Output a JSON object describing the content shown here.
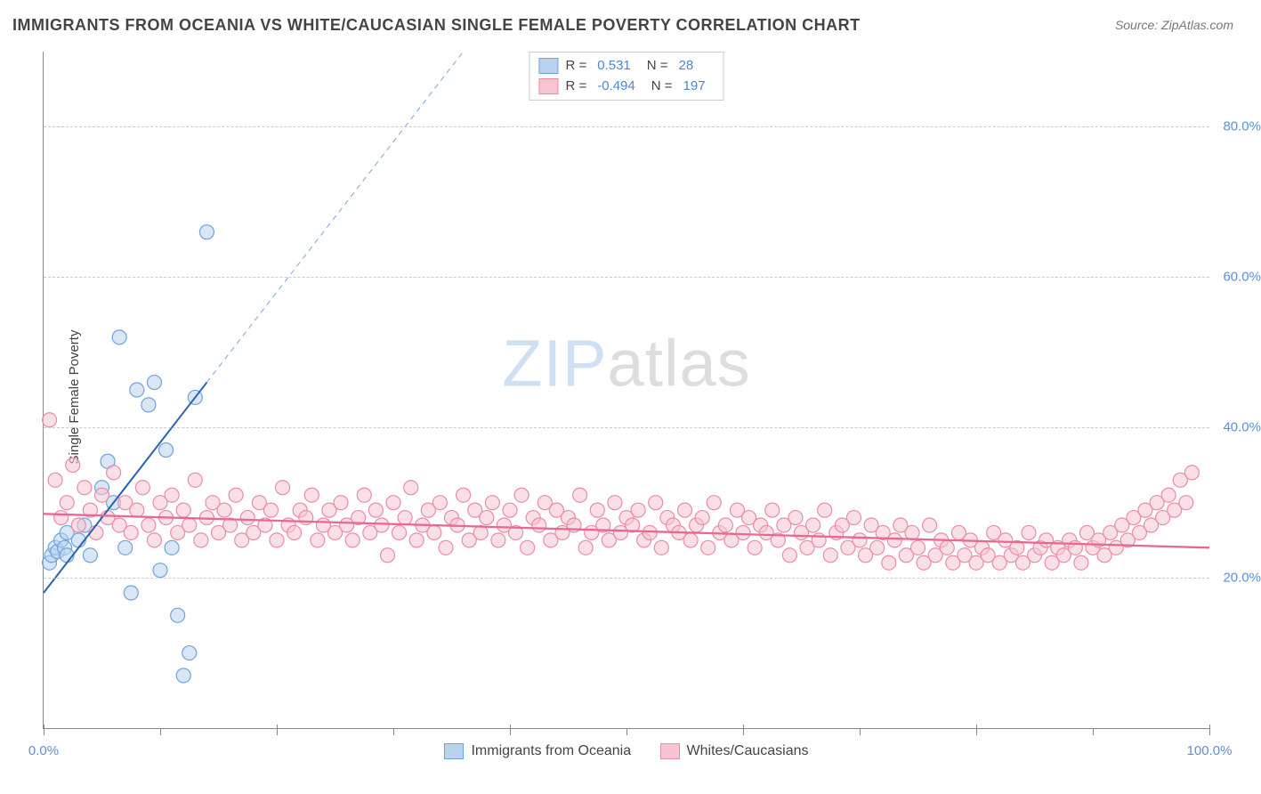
{
  "title": "IMMIGRANTS FROM OCEANIA VS WHITE/CAUCASIAN SINGLE FEMALE POVERTY CORRELATION CHART",
  "source": "Source: ZipAtlas.com",
  "ylabel": "Single Female Poverty",
  "watermark": {
    "part1": "ZIP",
    "part2": "atlas"
  },
  "chart": {
    "type": "scatter-with-regression",
    "x_range": [
      0,
      100
    ],
    "y_range": [
      0,
      90
    ],
    "y_ticks": [
      20,
      40,
      60,
      80
    ],
    "y_tick_labels": [
      "20.0%",
      "40.0%",
      "60.0%",
      "80.0%"
    ],
    "x_ticks": [
      0,
      20,
      40,
      60,
      80,
      100
    ],
    "x_tick_minor": [
      0,
      10,
      20,
      30,
      40,
      50,
      60,
      70,
      80,
      90,
      100
    ],
    "x_tick_labels_shown": {
      "0": "0.0%",
      "100": "100.0%"
    },
    "background_color": "#ffffff",
    "grid_color": "#cccccc",
    "axis_color": "#888888",
    "marker_radius": 8,
    "marker_stroke_width": 1.2,
    "series": [
      {
        "name": "Immigrants from Oceania",
        "legend_label": "Immigrants from Oceania",
        "fill": "#b9d2ee",
        "stroke": "#6fa3db",
        "fill_opacity": 0.55,
        "R": "0.531",
        "N": "28",
        "regression": {
          "solid": {
            "x1": 0,
            "y1": 18,
            "x2": 14,
            "y2": 46,
            "color": "#2862b5",
            "width": 2
          },
          "dashed": {
            "x1": 14,
            "y1": 46,
            "x2": 36,
            "y2": 90,
            "color": "#7ba6dc",
            "width": 1,
            "dash": "6 5"
          }
        },
        "points": [
          [
            0.5,
            22
          ],
          [
            0.7,
            23
          ],
          [
            1,
            24
          ],
          [
            1.2,
            23.5
          ],
          [
            1.5,
            25
          ],
          [
            1.8,
            24
          ],
          [
            2,
            26
          ],
          [
            2,
            23
          ],
          [
            3,
            25
          ],
          [
            3.5,
            27
          ],
          [
            4,
            23
          ],
          [
            5,
            32
          ],
          [
            5.5,
            35.5
          ],
          [
            6,
            30
          ],
          [
            6.5,
            52
          ],
          [
            7,
            24
          ],
          [
            7.5,
            18
          ],
          [
            8,
            45
          ],
          [
            9,
            43
          ],
          [
            9.5,
            46
          ],
          [
            10,
            21
          ],
          [
            10.5,
            37
          ],
          [
            11,
            24
          ],
          [
            11.5,
            15
          ],
          [
            12,
            7
          ],
          [
            12.5,
            10
          ],
          [
            13,
            44
          ],
          [
            14,
            66
          ]
        ]
      },
      {
        "name": "Whites/Caucasians",
        "legend_label": "Whites/Caucasians",
        "fill": "#f7c5d2",
        "stroke": "#ea8ca5",
        "fill_opacity": 0.55,
        "R": "-0.494",
        "N": "197",
        "regression": {
          "solid": {
            "x1": 0,
            "y1": 28.5,
            "x2": 100,
            "y2": 24,
            "color": "#e86893",
            "width": 2.3
          }
        },
        "points": [
          [
            0.5,
            41
          ],
          [
            1,
            33
          ],
          [
            1.5,
            28
          ],
          [
            2,
            30
          ],
          [
            2.5,
            35
          ],
          [
            3,
            27
          ],
          [
            3.5,
            32
          ],
          [
            4,
            29
          ],
          [
            4.5,
            26
          ],
          [
            5,
            31
          ],
          [
            5.5,
            28
          ],
          [
            6,
            34
          ],
          [
            6.5,
            27
          ],
          [
            7,
            30
          ],
          [
            7.5,
            26
          ],
          [
            8,
            29
          ],
          [
            8.5,
            32
          ],
          [
            9,
            27
          ],
          [
            9.5,
            25
          ],
          [
            10,
            30
          ],
          [
            10.5,
            28
          ],
          [
            11,
            31
          ],
          [
            11.5,
            26
          ],
          [
            12,
            29
          ],
          [
            12.5,
            27
          ],
          [
            13,
            33
          ],
          [
            13.5,
            25
          ],
          [
            14,
            28
          ],
          [
            14.5,
            30
          ],
          [
            15,
            26
          ],
          [
            15.5,
            29
          ],
          [
            16,
            27
          ],
          [
            16.5,
            31
          ],
          [
            17,
            25
          ],
          [
            17.5,
            28
          ],
          [
            18,
            26
          ],
          [
            18.5,
            30
          ],
          [
            19,
            27
          ],
          [
            19.5,
            29
          ],
          [
            20,
            25
          ],
          [
            20.5,
            32
          ],
          [
            21,
            27
          ],
          [
            21.5,
            26
          ],
          [
            22,
            29
          ],
          [
            22.5,
            28
          ],
          [
            23,
            31
          ],
          [
            23.5,
            25
          ],
          [
            24,
            27
          ],
          [
            24.5,
            29
          ],
          [
            25,
            26
          ],
          [
            25.5,
            30
          ],
          [
            26,
            27
          ],
          [
            26.5,
            25
          ],
          [
            27,
            28
          ],
          [
            27.5,
            31
          ],
          [
            28,
            26
          ],
          [
            28.5,
            29
          ],
          [
            29,
            27
          ],
          [
            29.5,
            23
          ],
          [
            30,
            30
          ],
          [
            30.5,
            26
          ],
          [
            31,
            28
          ],
          [
            31.5,
            32
          ],
          [
            32,
            25
          ],
          [
            32.5,
            27
          ],
          [
            33,
            29
          ],
          [
            33.5,
            26
          ],
          [
            34,
            30
          ],
          [
            34.5,
            24
          ],
          [
            35,
            28
          ],
          [
            35.5,
            27
          ],
          [
            36,
            31
          ],
          [
            36.5,
            25
          ],
          [
            37,
            29
          ],
          [
            37.5,
            26
          ],
          [
            38,
            28
          ],
          [
            38.5,
            30
          ],
          [
            39,
            25
          ],
          [
            39.5,
            27
          ],
          [
            40,
            29
          ],
          [
            40.5,
            26
          ],
          [
            41,
            31
          ],
          [
            41.5,
            24
          ],
          [
            42,
            28
          ],
          [
            42.5,
            27
          ],
          [
            43,
            30
          ],
          [
            43.5,
            25
          ],
          [
            44,
            29
          ],
          [
            44.5,
            26
          ],
          [
            45,
            28
          ],
          [
            45.5,
            27
          ],
          [
            46,
            31
          ],
          [
            46.5,
            24
          ],
          [
            47,
            26
          ],
          [
            47.5,
            29
          ],
          [
            48,
            27
          ],
          [
            48.5,
            25
          ],
          [
            49,
            30
          ],
          [
            49.5,
            26
          ],
          [
            50,
            28
          ],
          [
            50.5,
            27
          ],
          [
            51,
            29
          ],
          [
            51.5,
            25
          ],
          [
            52,
            26
          ],
          [
            52.5,
            30
          ],
          [
            53,
            24
          ],
          [
            53.5,
            28
          ],
          [
            54,
            27
          ],
          [
            54.5,
            26
          ],
          [
            55,
            29
          ],
          [
            55.5,
            25
          ],
          [
            56,
            27
          ],
          [
            56.5,
            28
          ],
          [
            57,
            24
          ],
          [
            57.5,
            30
          ],
          [
            58,
            26
          ],
          [
            58.5,
            27
          ],
          [
            59,
            25
          ],
          [
            59.5,
            29
          ],
          [
            60,
            26
          ],
          [
            60.5,
            28
          ],
          [
            61,
            24
          ],
          [
            61.5,
            27
          ],
          [
            62,
            26
          ],
          [
            62.5,
            29
          ],
          [
            63,
            25
          ],
          [
            63.5,
            27
          ],
          [
            64,
            23
          ],
          [
            64.5,
            28
          ],
          [
            65,
            26
          ],
          [
            65.5,
            24
          ],
          [
            66,
            27
          ],
          [
            66.5,
            25
          ],
          [
            67,
            29
          ],
          [
            67.5,
            23
          ],
          [
            68,
            26
          ],
          [
            68.5,
            27
          ],
          [
            69,
            24
          ],
          [
            69.5,
            28
          ],
          [
            70,
            25
          ],
          [
            70.5,
            23
          ],
          [
            71,
            27
          ],
          [
            71.5,
            24
          ],
          [
            72,
            26
          ],
          [
            72.5,
            22
          ],
          [
            73,
            25
          ],
          [
            73.5,
            27
          ],
          [
            74,
            23
          ],
          [
            74.5,
            26
          ],
          [
            75,
            24
          ],
          [
            75.5,
            22
          ],
          [
            76,
            27
          ],
          [
            76.5,
            23
          ],
          [
            77,
            25
          ],
          [
            77.5,
            24
          ],
          [
            78,
            22
          ],
          [
            78.5,
            26
          ],
          [
            79,
            23
          ],
          [
            79.5,
            25
          ],
          [
            80,
            22
          ],
          [
            80.5,
            24
          ],
          [
            81,
            23
          ],
          [
            81.5,
            26
          ],
          [
            82,
            22
          ],
          [
            82.5,
            25
          ],
          [
            83,
            23
          ],
          [
            83.5,
            24
          ],
          [
            84,
            22
          ],
          [
            84.5,
            26
          ],
          [
            85,
            23
          ],
          [
            85.5,
            24
          ],
          [
            86,
            25
          ],
          [
            86.5,
            22
          ],
          [
            87,
            24
          ],
          [
            87.5,
            23
          ],
          [
            88,
            25
          ],
          [
            88.5,
            24
          ],
          [
            89,
            22
          ],
          [
            89.5,
            26
          ],
          [
            90,
            24
          ],
          [
            90.5,
            25
          ],
          [
            91,
            23
          ],
          [
            91.5,
            26
          ],
          [
            92,
            24
          ],
          [
            92.5,
            27
          ],
          [
            93,
            25
          ],
          [
            93.5,
            28
          ],
          [
            94,
            26
          ],
          [
            94.5,
            29
          ],
          [
            95,
            27
          ],
          [
            95.5,
            30
          ],
          [
            96,
            28
          ],
          [
            96.5,
            31
          ],
          [
            97,
            29
          ],
          [
            97.5,
            33
          ],
          [
            98,
            30
          ],
          [
            98.5,
            34
          ]
        ]
      }
    ],
    "tick_label_color": "#5b8fd6",
    "tick_label_fontsize": 15,
    "title_fontsize": 18,
    "title_color": "#444444"
  },
  "legend_top_labels": {
    "R": "R =",
    "N": "N ="
  }
}
